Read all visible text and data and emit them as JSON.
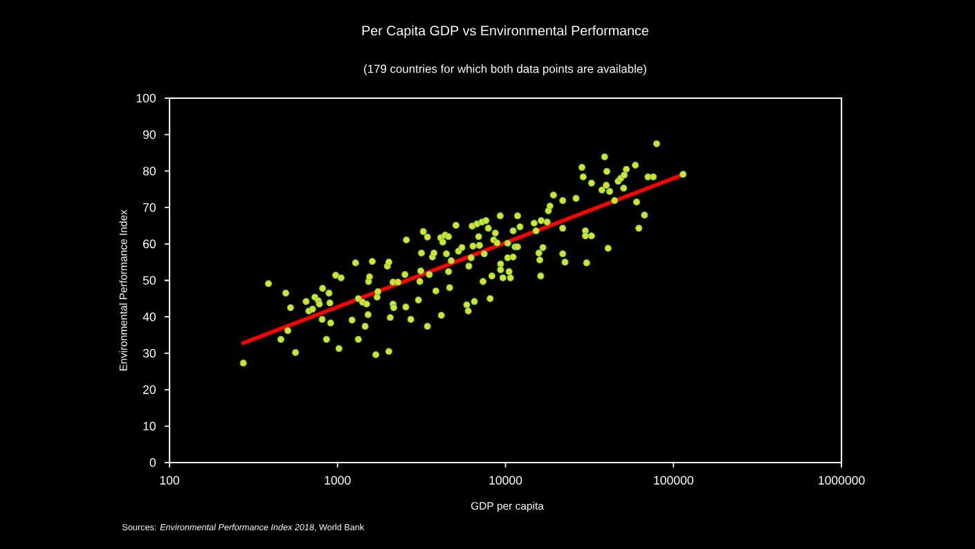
{
  "chart_data": {
    "type": "scatter",
    "title": "Per Capita GDP vs Environmental Performance",
    "subtitle": "(179 countries for which both data points are available)",
    "xlabel": "GDP per capita",
    "ylabel": "Environmental Performance Index",
    "annotations": [
      "Sources: *Environmental Performance Index 2018*, World Bank"
    ],
    "log": "x",
    "xlim": [
      100,
      1000000
    ],
    "xticks": [
      100,
      1000,
      10000,
      100000,
      1000000
    ],
    "ylim": [
      0,
      100
    ],
    "yticks": [
      0,
      10,
      20,
      30,
      40,
      50,
      60,
      70,
      80,
      90,
      100
    ],
    "series": [
      {
        "marker": "circle",
        "color": "#e0e020",
        "x": [
          275,
          388,
          460,
          492,
          506,
          525,
          562,
          650,
          675,
          710,
          733,
          769,
          780,
          810,
          815,
          860,
          890,
          900,
          910,
          975,
          1020,
          1050,
          1220,
          1280,
          1330,
          1330,
          1410,
          1460,
          1490,
          1520,
          1530,
          1550,
          1610,
          1690,
          1720,
          1740,
          1980,
          2020,
          2020,
          2060,
          2140,
          2160,
          2140,
          2290,
          2520,
          2570,
          2550,
          2730,
          3030,
          3090,
          3130,
          3160,
          3240,
          3430,
          3430,
          3520,
          3670,
          3750,
          3850,
          4110,
          4150,
          4230,
          4370,
          4450,
          4580,
          4580,
          4650,
          4750,
          5070,
          5250,
          5500,
          5880,
          6000,
          6050,
          6240,
          6330,
          6400,
          6530,
          6760,
          6920,
          7000,
          7250,
          7350,
          7470,
          7650,
          7900,
          8100,
          8300,
          8500,
          8700,
          8900,
          9300,
          9350,
          9350,
          9650,
          10300,
          10300,
          10500,
          10700,
          11100,
          11100,
          11400,
          11800,
          11800,
          12200,
          14800,
          15200,
          15800,
          16000,
          16200,
          16300,
          16700,
          17700,
          18000,
          18400,
          19300,
          21900,
          21900,
          21900,
          22600,
          26300,
          28500,
          29000,
          29900,
          29900,
          30400,
          32500,
          32500,
          37500,
          38900,
          39800,
          40100,
          40800,
          41700,
          44600,
          46800,
          48500,
          50900,
          50500,
          52400,
          59300,
          60300,
          62200,
          67200,
          70500,
          75900,
          79400,
          114000
        ],
        "values": [
          27.3,
          49.1,
          33.8,
          46.5,
          36.2,
          42.5,
          30.2,
          44.2,
          41.6,
          42.1,
          45.4,
          44.4,
          43.5,
          39.3,
          47.8,
          33.8,
          46.5,
          43.8,
          38.3,
          51.4,
          31.3,
          50.7,
          39.1,
          54.8,
          33.8,
          45,
          44,
          37.4,
          43.5,
          40.6,
          49.7,
          51,
          55.2,
          29.6,
          45.4,
          46.9,
          53.9,
          55,
          30.5,
          39.8,
          43.5,
          42.5,
          49.5,
          49.5,
          51.6,
          61.1,
          42.7,
          39.3,
          44.6,
          49.7,
          52.6,
          57.5,
          63.4,
          61.9,
          37.4,
          51.6,
          56.4,
          57.5,
          47.1,
          61.7,
          40.4,
          60.5,
          62.4,
          57.3,
          62,
          52.4,
          48,
          55.4,
          65.1,
          58,
          59,
          43.3,
          41.6,
          53.9,
          56.2,
          64.9,
          59.4,
          44.2,
          65.5,
          62,
          59.6,
          66,
          49.7,
          57.3,
          66.4,
          64.3,
          45,
          51.2,
          61.1,
          63,
          60.3,
          67.7,
          54.5,
          52.9,
          50.7,
          60.2,
          56.2,
          52.4,
          50.7,
          63.6,
          56.4,
          59.2,
          59.2,
          67.7,
          64.7,
          65.7,
          63.6,
          57.5,
          55.6,
          51.2,
          66.4,
          59,
          66,
          69.1,
          70.4,
          73.4,
          71.9,
          64.3,
          57.3,
          55,
          72.5,
          81,
          78.4,
          63.6,
          62.2,
          54.8,
          62.2,
          76.7,
          74.8,
          83.9,
          76.1,
          79.9,
          58.8,
          74.4,
          71.9,
          77.2,
          78,
          78.9,
          75.3,
          80.5,
          81.6,
          71.5,
          64.3,
          67.9,
          78.4,
          78.4,
          87.5,
          79.1
        ]
      },
      {
        "type": "line",
        "marker": "none",
        "color": "#ff0000",
        "x": [
          275,
          114000
        ],
        "values": [
          32.8,
          79
        ]
      }
    ]
  }
}
